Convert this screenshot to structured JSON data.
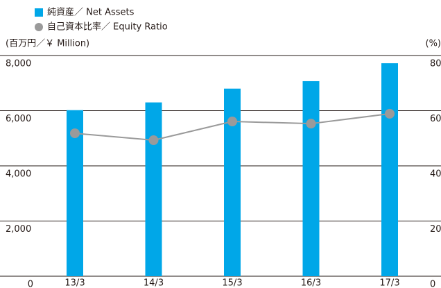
{
  "chart_data": {
    "type": "bar_line",
    "y_label": "(百万円／￥ Million)",
    "y2_label": "(%)",
    "categories": [
      "13/3",
      "14/3",
      "15/3",
      "16/3",
      "17/3"
    ],
    "series": [
      {
        "name": "純資産／ Net Assets",
        "color": "#00a7e8",
        "type": "bar",
        "values": [
          6020,
          6300,
          6800,
          7070,
          7720
        ]
      },
      {
        "name": "自己資本比率／ Equity Ratio",
        "color": "#9a9a9a",
        "type": "line",
        "axis": "y2",
        "values": [
          51.8,
          49.3,
          56.1,
          55.3,
          58.9
        ]
      }
    ],
    "ylim": [
      0,
      8000
    ],
    "yticks": [
      0,
      {
        "value": 2000,
        "label": "2,000"
      },
      {
        "value": 4000,
        "label": "4,000"
      },
      {
        "value": 6000,
        "label": "6,000"
      },
      {
        "value": 8000,
        "label": "8,000"
      }
    ],
    "y2lim": [
      0,
      80
    ],
    "y2ticks": [
      0,
      20,
      40,
      60,
      80
    ],
    "grid": true
  }
}
